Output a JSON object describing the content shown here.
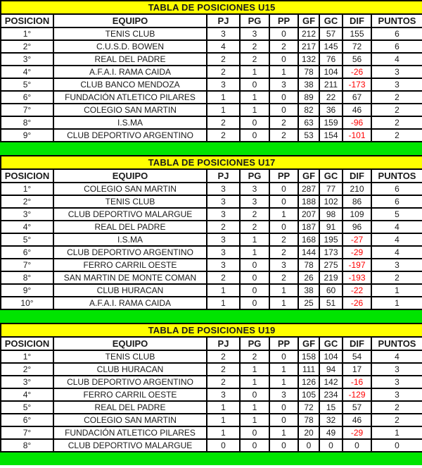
{
  "colors": {
    "title_bg": "#ffff00",
    "separator_green": "#00e400",
    "negative_red": "#ff0000",
    "border_black": "#000000",
    "row_bg": "#ffffff"
  },
  "tables": [
    {
      "title": "TABLA DE POSICIONES U15",
      "headers": [
        "POSICION",
        "EQUIPO",
        "PJ",
        "PG",
        "PP",
        "GF",
        "GC",
        "DIF",
        "PUNTOS"
      ],
      "rows": [
        [
          "1°",
          "TENIS CLUB",
          "3",
          "3",
          "0",
          "212",
          "57",
          "155",
          "6"
        ],
        [
          "2°",
          "C.U.S.D. BOWEN",
          "4",
          "2",
          "2",
          "217",
          "145",
          "72",
          "6"
        ],
        [
          "3°",
          "REAL DEL PADRE",
          "2",
          "2",
          "0",
          "132",
          "76",
          "56",
          "4"
        ],
        [
          "4°",
          "A.F.A.I. RAMA CAIDA",
          "2",
          "1",
          "1",
          "78",
          "104",
          "-26",
          "3"
        ],
        [
          "5°",
          "CLUB BANCO MENDOZA",
          "3",
          "0",
          "3",
          "38",
          "211",
          "-173",
          "3"
        ],
        [
          "6°",
          "FUNDACIÓN ATLETICO PILARES",
          "1",
          "1",
          "0",
          "89",
          "22",
          "67",
          "2"
        ],
        [
          "7°",
          "COLEGIO SAN MARTIN",
          "1",
          "1",
          "0",
          "82",
          "36",
          "46",
          "2"
        ],
        [
          "8°",
          "I.S.MA",
          "2",
          "0",
          "2",
          "63",
          "159",
          "-96",
          "2"
        ],
        [
          "9°",
          "CLUB DEPORTIVO ARGENTINO",
          "2",
          "0",
          "2",
          "53",
          "154",
          "-101",
          "2"
        ]
      ]
    },
    {
      "title": "TABLA DE POSICIONES U17",
      "headers": [
        "POSICION",
        "EQUIPO",
        "PJ",
        "PG",
        "PP",
        "GF",
        "GC",
        "DIF",
        "PUNTOS"
      ],
      "rows": [
        [
          "1°",
          "COLEGIO SAN MARTIN",
          "3",
          "3",
          "0",
          "287",
          "77",
          "210",
          "6"
        ],
        [
          "2°",
          "TENIS CLUB",
          "3",
          "3",
          "0",
          "188",
          "102",
          "86",
          "6"
        ],
        [
          "3°",
          "CLUB DEPORTIVO MALARGUE",
          "3",
          "2",
          "1",
          "207",
          "98",
          "109",
          "5"
        ],
        [
          "4°",
          "REAL DEL PADRE",
          "2",
          "2",
          "0",
          "187",
          "91",
          "96",
          "4"
        ],
        [
          "5°",
          "I.S.MA",
          "3",
          "1",
          "2",
          "168",
          "195",
          "-27",
          "4"
        ],
        [
          "6°",
          "CLUB DEPORTIVO ARGENTINO",
          "3",
          "1",
          "2",
          "144",
          "173",
          "-29",
          "4"
        ],
        [
          "7°",
          "FERRO CARRIL OESTE",
          "3",
          "0",
          "3",
          "78",
          "275",
          "-197",
          "3"
        ],
        [
          "8°",
          "SAN MARTIN DE MONTE COMAN",
          "2",
          "0",
          "2",
          "26",
          "219",
          "-193",
          "2"
        ],
        [
          "9°",
          "CLUB HURACAN",
          "1",
          "0",
          "1",
          "38",
          "60",
          "-22",
          "1"
        ],
        [
          "10°",
          "A.F.A.I. RAMA CAIDA",
          "1",
          "0",
          "1",
          "25",
          "51",
          "-26",
          "1"
        ]
      ]
    },
    {
      "title": "TABLA DE POSICIONES U19",
      "headers": [
        "POSICION",
        "EQUIPO",
        "PJ",
        "PG",
        "PP",
        "GF",
        "GC",
        "DIF",
        "PUNTOS"
      ],
      "rows": [
        [
          "1°",
          "TENIS CLUB",
          "2",
          "2",
          "0",
          "158",
          "104",
          "54",
          "4"
        ],
        [
          "2°",
          "CLUB HURACAN",
          "2",
          "1",
          "1",
          "111",
          "94",
          "17",
          "3"
        ],
        [
          "3°",
          "CLUB DEPORTIVO ARGENTINO",
          "2",
          "1",
          "1",
          "126",
          "142",
          "-16",
          "3"
        ],
        [
          "4°",
          "FERRO CARRIL OESTE",
          "3",
          "0",
          "3",
          "105",
          "234",
          "-129",
          "3"
        ],
        [
          "5°",
          "REAL DEL PADRE",
          "1",
          "1",
          "0",
          "72",
          "15",
          "57",
          "2"
        ],
        [
          "6°",
          "COLEGIO SAN MARTIN",
          "1",
          "1",
          "0",
          "78",
          "32",
          "46",
          "2"
        ],
        [
          "7°",
          "FUNDACIÓN ATLETICO PILARES",
          "1",
          "0",
          "1",
          "20",
          "49",
          "-29",
          "1"
        ],
        [
          "8°",
          "CLUB DEPORTIVO MALARGUE",
          "0",
          "0",
          "0",
          "0",
          "0",
          "0",
          "0"
        ]
      ]
    }
  ]
}
